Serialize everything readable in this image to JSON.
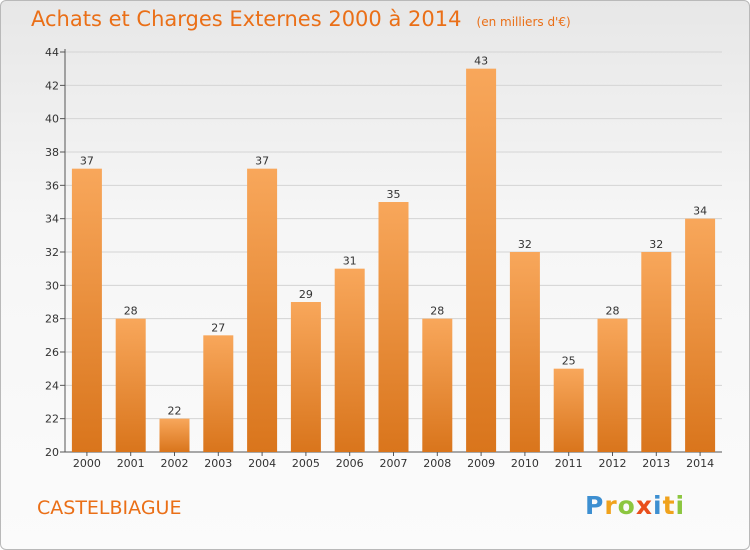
{
  "header": {
    "title": "Achats et Charges Externes 2000 à 2014",
    "unit": "(en milliers d'€)"
  },
  "footer": {
    "commune": "CASTELBIAGUE",
    "brand": "Proxiti",
    "brand_letters": [
      {
        "ch": "P",
        "color": "#3d8fd1"
      },
      {
        "ch": "r",
        "color": "#f0a21c"
      },
      {
        "ch": "o",
        "color": "#8cc63f"
      },
      {
        "ch": "x",
        "color": "#e94e1b"
      },
      {
        "ch": "i",
        "color": "#3d8fd1"
      },
      {
        "ch": "t",
        "color": "#f0a21c"
      },
      {
        "ch": "i",
        "color": "#8cc63f"
      }
    ]
  },
  "colors": {
    "accent": "#ea6f17",
    "bar_top": "#f8a75b",
    "bar_bottom": "#d9751c",
    "grid": "#d4d4d4"
  },
  "chart_data": {
    "type": "bar",
    "title": "Achats et Charges Externes 2000 à 2014",
    "subtitle": "(en milliers d'€)",
    "categories": [
      "2000",
      "2001",
      "2002",
      "2003",
      "2004",
      "2005",
      "2006",
      "2007",
      "2008",
      "2009",
      "2010",
      "2011",
      "2012",
      "2013",
      "2014"
    ],
    "values": [
      37,
      28,
      22,
      27,
      37,
      29,
      31,
      35,
      28,
      43,
      32,
      25,
      28,
      32,
      34
    ],
    "ylim": [
      20,
      44
    ],
    "yticks": [
      20,
      22,
      24,
      26,
      28,
      30,
      32,
      34,
      36,
      38,
      40,
      42,
      44
    ],
    "grid": true,
    "data_labels": true
  }
}
